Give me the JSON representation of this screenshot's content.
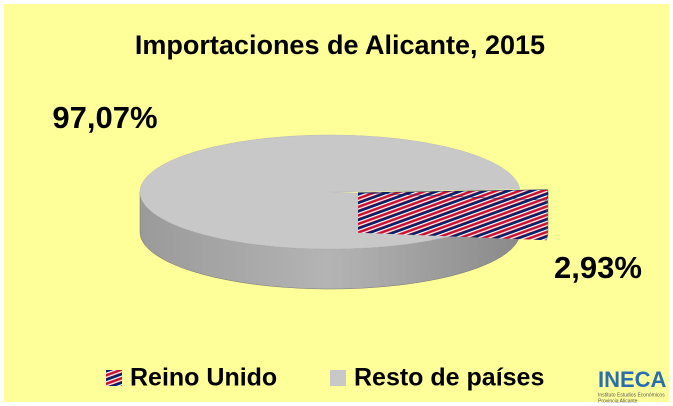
{
  "chart_data": {
    "type": "pie3d",
    "title": "Importaciones de Alicante, 2015",
    "categories": [
      "Reino Unido",
      "Resto de países"
    ],
    "values": [
      2.93,
      97.07
    ],
    "value_labels": [
      "2,93%",
      "97,07%"
    ],
    "colors": [
      "#c8102e",
      "#c8c8c8"
    ],
    "legend": "bottom"
  },
  "logo": {
    "name": "INECA",
    "lines": [
      "Instituto Estudios Económicos",
      "Provincia Alicante"
    ]
  }
}
